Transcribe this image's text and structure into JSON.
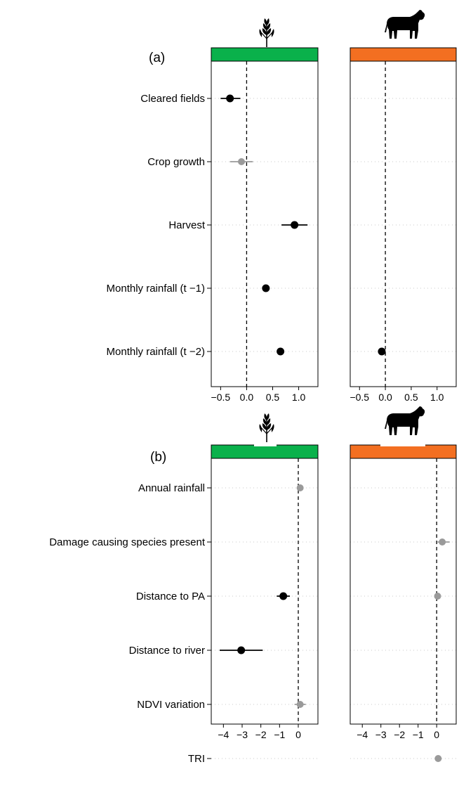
{
  "colors": {
    "crop_strip": "#0ab14b",
    "livestock_strip": "#f36f21",
    "significant": "#000000",
    "nonsignificant": "#9a9a9a",
    "grid": "#c8c8c8"
  },
  "icons": {
    "crop": "wheat-icon",
    "livestock": "cow-icon"
  },
  "chart_data": [
    {
      "type": "scatter",
      "panel": "(a)",
      "facets": [
        "crop",
        "livestock"
      ],
      "categories": [
        "Cleared fields",
        "Crop growth",
        "Harvest",
        "Monthly rainfall (t −1)",
        "Monthly rainfall (t −2)"
      ],
      "xlim": [
        -0.68,
        1.37
      ],
      "ticks": [
        -0.5,
        0.0,
        0.5,
        1.0
      ],
      "tick_labels": [
        "−0.5",
        "0.0",
        "0.5",
        "1.0"
      ],
      "reference_line": 0,
      "grid": true,
      "series": [
        {
          "facet": "crop",
          "points": [
            {
              "category": "Cleared fields",
              "estimate": -0.32,
              "lower": -0.5,
              "upper": -0.12,
              "significant": true
            },
            {
              "category": "Crop growth",
              "estimate": -0.1,
              "lower": -0.32,
              "upper": 0.12,
              "significant": false
            },
            {
              "category": "Harvest",
              "estimate": 0.92,
              "lower": 0.67,
              "upper": 1.17,
              "significant": true
            },
            {
              "category": "Monthly rainfall (t −1)",
              "estimate": 0.37,
              "lower": 0.33,
              "upper": 0.41,
              "significant": true
            },
            {
              "category": "Monthly rainfall (t −2)",
              "estimate": 0.65,
              "lower": 0.6,
              "upper": 0.7,
              "significant": true
            }
          ]
        },
        {
          "facet": "livestock",
          "points": [
            {
              "category": "Monthly rainfall (t −2)",
              "estimate": -0.07,
              "lower": -0.11,
              "upper": -0.03,
              "significant": true
            }
          ]
        }
      ]
    },
    {
      "type": "scatter",
      "panel": "(b)",
      "facets": [
        "crop",
        "livestock"
      ],
      "categories": [
        "Annual rainfall",
        "Damage causing species present",
        "Distance to PA",
        "Distance to river",
        "NDVI variation",
        "TRI"
      ],
      "xlim": [
        -4.65,
        1.05
      ],
      "ticks": [
        -4,
        -3,
        -2,
        -1,
        0
      ],
      "tick_labels": [
        "−4",
        "−3",
        "−2",
        "−1",
        "0"
      ],
      "reference_line": 0,
      "grid": true,
      "series": [
        {
          "facet": "crop",
          "points": [
            {
              "category": "Annual rainfall",
              "estimate": 0.1,
              "lower": -0.05,
              "upper": 0.25,
              "significant": false
            },
            {
              "category": "Distance to PA",
              "estimate": -0.8,
              "lower": -1.15,
              "upper": -0.45,
              "significant": true
            },
            {
              "category": "Distance to river",
              "estimate": -3.05,
              "lower": -4.2,
              "upper": -1.9,
              "significant": true
            },
            {
              "category": "NDVI variation",
              "estimate": 0.1,
              "lower": -0.2,
              "upper": 0.4,
              "significant": false
            }
          ]
        },
        {
          "facet": "livestock",
          "points": [
            {
              "category": "Damage causing species present",
              "estimate": 0.3,
              "lower": 0.05,
              "upper": 0.7,
              "significant": false
            },
            {
              "category": "Distance to PA",
              "estimate": 0.05,
              "lower": -0.1,
              "upper": 0.2,
              "significant": false
            },
            {
              "category": "TRI",
              "estimate": 0.08,
              "lower": -0.1,
              "upper": 0.26,
              "significant": false
            }
          ]
        }
      ]
    }
  ]
}
